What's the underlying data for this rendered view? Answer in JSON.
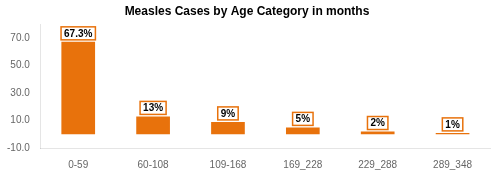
{
  "chart_data": {
    "type": "bar",
    "title": "Measles Cases by Age Category in months",
    "categories": [
      "0-59",
      "60-108",
      "109-168",
      "169_228",
      "229_288",
      "289_348"
    ],
    "values": [
      67.3,
      13.0,
      9.0,
      5.0,
      2.0,
      1.0
    ],
    "value_labels": [
      "67.3%",
      "13%",
      "9%",
      "5%",
      "2%",
      "1%"
    ],
    "data_labels": true,
    "color": "#E8720C",
    "ylim": [
      -10,
      80
    ],
    "yticks": [
      {
        "value": -10,
        "label": "-10.0"
      },
      {
        "value": 10,
        "label": "10.0"
      },
      {
        "value": 30,
        "label": "30.0"
      },
      {
        "value": 50,
        "label": "50.0"
      },
      {
        "value": 70,
        "label": "70.0"
      }
    ],
    "grid": false
  }
}
